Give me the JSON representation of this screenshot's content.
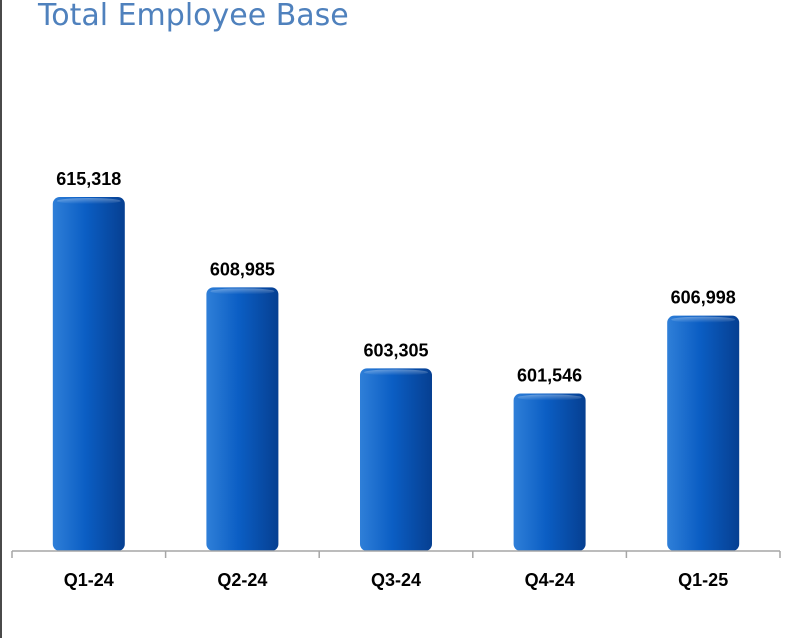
{
  "title": "Total Employee Base",
  "colors": {
    "title": "#4f81bd",
    "bar_light": "#2f7fd8",
    "bar_mid": "#0b5ec4",
    "bar_dark": "#063f91",
    "axis": "#a6a6a6",
    "text": "#000000"
  },
  "chart_data": {
    "type": "bar",
    "title": "Total Employee Base",
    "categories": [
      "Q1-24",
      "Q2-24",
      "Q3-24",
      "Q4-24",
      "Q1-25"
    ],
    "values": [
      615318,
      608985,
      603305,
      601546,
      606998
    ],
    "data_labels": [
      "615,318",
      "608,985",
      "603,305",
      "601,546",
      "606,998"
    ],
    "xlabel": "",
    "ylabel": "",
    "ylim": [
      590500,
      617000
    ],
    "grid": false,
    "legend": "none"
  }
}
